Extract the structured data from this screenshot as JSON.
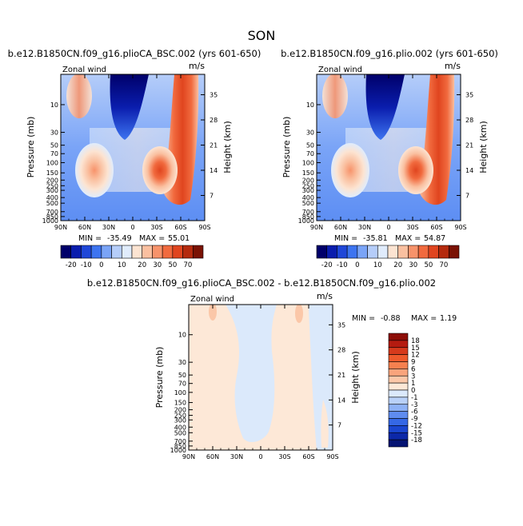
{
  "figure": {
    "title": "SON"
  },
  "colors": {
    "levels_abs": [
      "-20",
      "-10",
      "0",
      "10",
      "20",
      "30",
      "50",
      "70"
    ],
    "palette_abs": [
      "#00006a",
      "#0a1dad",
      "#1f47d8",
      "#3d74f0",
      "#7aa4f7",
      "#b5cdf9",
      "#e0ecfc",
      "#fce4d2",
      "#fac0a0",
      "#f7936b",
      "#f16a3e",
      "#e0451f",
      "#b42a0e",
      "#7a1204"
    ],
    "levels_diff": [
      "18",
      "15",
      "12",
      "9",
      "6",
      "3",
      "1",
      "0",
      "-1",
      "-3",
      "-6",
      "-9",
      "-12",
      "-15",
      "-18"
    ],
    "palette_diff": [
      "#8c0d07",
      "#b51b10",
      "#d63a1c",
      "#ee5a2c",
      "#f6804f",
      "#f9a47c",
      "#fbc7a8",
      "#fde8d7",
      "#dbe9fb",
      "#b9d1f8",
      "#8eb2f5",
      "#5f8cf0",
      "#3568e6",
      "#1a46d0",
      "#0c28a8",
      "#061473"
    ]
  },
  "chart_data": [
    {
      "id": "panel-left",
      "type": "heatmap",
      "title": "b.e12.B1850CN.f09_g16.plioCA_BSC.002 (yrs 601-650)",
      "variable": "Zonal wind",
      "units": "m/s",
      "xticks": [
        "90N",
        "60N",
        "30N",
        "0",
        "30S",
        "60S",
        "90S"
      ],
      "ylabel": "Pressure (mb)",
      "yticks": [
        "10",
        "30",
        "50",
        "70",
        "100",
        "150",
        "200",
        "250",
        "300",
        "400",
        "500",
        "700",
        "850",
        "1000"
      ],
      "ylabel_right": "Height (km)",
      "yticks_right": [
        "35",
        "28",
        "21",
        "14",
        "7"
      ],
      "min": -35.49,
      "max": 55.01,
      "min_label": "MIN =",
      "min_text": "-35.49",
      "max_label": "MAX =",
      "max_text": "55.01"
    },
    {
      "id": "panel-right",
      "type": "heatmap",
      "title": "b.e12.B1850CN.f09_g16.plio.002 (yrs 601-650)",
      "variable": "Zonal wind",
      "units": "m/s",
      "xticks": [
        "90N",
        "60N",
        "30N",
        "0",
        "30S",
        "60S",
        "90S"
      ],
      "ylabel": "Pressure (mb)",
      "yticks": [
        "10",
        "30",
        "50",
        "70",
        "100",
        "150",
        "200",
        "250",
        "300",
        "400",
        "500",
        "700",
        "850",
        "1000"
      ],
      "ylabel_right": "Height (km)",
      "yticks_right": [
        "35",
        "28",
        "21",
        "14",
        "7"
      ],
      "min": -35.81,
      "max": 54.87,
      "min_label": "MIN =",
      "min_text": "-35.81",
      "max_label": "MAX =",
      "max_text": "54.87"
    },
    {
      "id": "panel-diff",
      "type": "heatmap",
      "title": "b.e12.B1850CN.f09_g16.plioCA_BSC.002 - b.e12.B1850CN.f09_g16.plio.002",
      "variable": "Zonal wind",
      "units": "m/s",
      "xticks": [
        "90N",
        "60N",
        "30N",
        "0",
        "30S",
        "60S",
        "90S"
      ],
      "ylabel": "Pressure (mb)",
      "yticks": [
        "10",
        "30",
        "50",
        "70",
        "100",
        "150",
        "200",
        "250",
        "300",
        "400",
        "500",
        "700",
        "850",
        "1000"
      ],
      "ylabel_right": "Height (km)",
      "yticks_right": [
        "35",
        "28",
        "21",
        "14",
        "7"
      ],
      "min": -0.88,
      "max": 1.19,
      "min_label": "MIN =",
      "min_text": "-0.88",
      "max_label": "MAX =",
      "max_text": "1.19"
    }
  ]
}
